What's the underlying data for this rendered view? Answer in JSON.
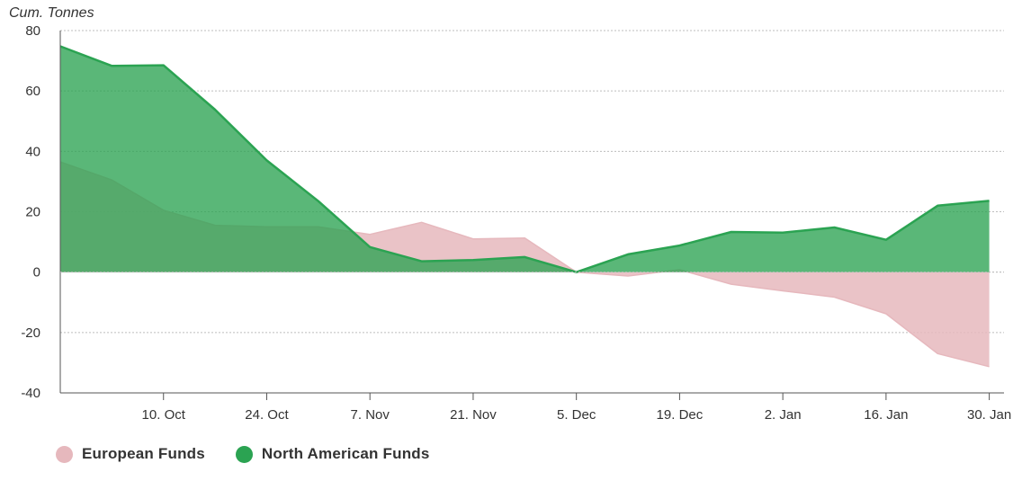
{
  "chart_data": {
    "type": "area",
    "ylabel": "Cum. Tonnes",
    "xlabel": "",
    "ylim": [
      -40,
      80
    ],
    "yticks": [
      80,
      60,
      40,
      20,
      0,
      -20,
      -40
    ],
    "xlim": [
      "2023-09-26",
      "2024-02-01"
    ],
    "xticks": [
      {
        "date": "2023-10-10",
        "label": "10. Oct"
      },
      {
        "date": "2023-10-24",
        "label": "24. Oct"
      },
      {
        "date": "2023-11-07",
        "label": "7. Nov"
      },
      {
        "date": "2023-11-21",
        "label": "21. Nov"
      },
      {
        "date": "2023-12-05",
        "label": "5. Dec"
      },
      {
        "date": "2023-12-19",
        "label": "19. Dec"
      },
      {
        "date": "2024-01-02",
        "label": "2. Jan"
      },
      {
        "date": "2024-01-16",
        "label": "16. Jan"
      },
      {
        "date": "2024-01-30",
        "label": "30. Jan"
      }
    ],
    "x": [
      "2023-09-26",
      "2023-10-03",
      "2023-10-10",
      "2023-10-17",
      "2023-10-24",
      "2023-10-31",
      "2023-11-07",
      "2023-11-14",
      "2023-11-21",
      "2023-11-28",
      "2023-12-05",
      "2023-12-12",
      "2023-12-19",
      "2023-12-26",
      "2024-01-02",
      "2024-01-09",
      "2024-01-16",
      "2024-01-23",
      "2024-01-30"
    ],
    "series": [
      {
        "name": "European Funds",
        "color": "#e6b8bd",
        "values": [
          36.5,
          30.5,
          20.5,
          15.5,
          15,
          15,
          12.5,
          16.5,
          11,
          11.3,
          0,
          -1.3,
          0.8,
          -4,
          -6.2,
          -8.3,
          -13.8,
          -27,
          -31.3
        ]
      },
      {
        "name": "North American Funds",
        "color": "#2ba352",
        "values": [
          74.8,
          68.3,
          68.5,
          53.8,
          37,
          23.5,
          8.3,
          3.6,
          4,
          5,
          0,
          5.9,
          8.8,
          13.3,
          13.1,
          14.8,
          10.7,
          22,
          23.6
        ]
      }
    ],
    "grid": true,
    "legend_position": "bottom-left"
  },
  "legend": {
    "items": [
      {
        "label": "European Funds",
        "color": "#e6b8bd"
      },
      {
        "label": "North American Funds",
        "color": "#2ba352"
      }
    ]
  }
}
